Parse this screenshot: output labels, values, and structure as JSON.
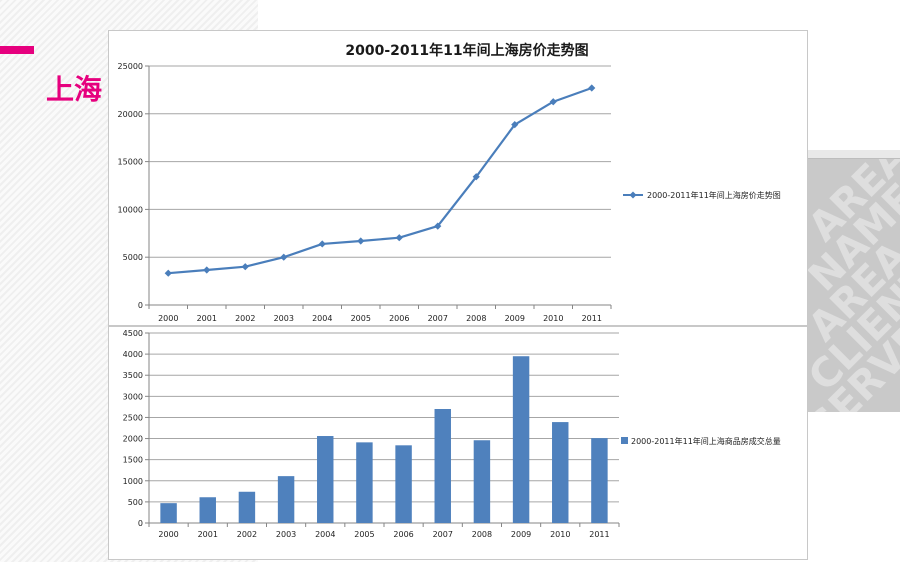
{
  "slide": {
    "title": "上海",
    "accent_color": "#e6007e"
  },
  "chart_data": [
    {
      "type": "line",
      "title": "2000-2011年11年间上海房价走势图",
      "categories": [
        "2000",
        "2001",
        "2002",
        "2003",
        "2004",
        "2005",
        "2006",
        "2007",
        "2008",
        "2009",
        "2010",
        "2011"
      ],
      "series": [
        {
          "name": "2000-2011年11年间上海房价走势图",
          "values": [
            3326,
            3658,
            4007,
            5000,
            6385,
            6698,
            7039,
            8253,
            13412,
            18866,
            21262,
            22700
          ],
          "color": "#4a7ebb",
          "marker": "diamond"
        }
      ],
      "ylim": [
        0,
        25000
      ],
      "yticks": [
        0,
        5000,
        10000,
        15000,
        20000,
        25000
      ],
      "grid": true,
      "legend": "right"
    },
    {
      "type": "bar",
      "title": "",
      "categories": [
        "2000",
        "2001",
        "2002",
        "2003",
        "2004",
        "2005",
        "2006",
        "2007",
        "2008",
        "2009",
        "2010",
        "2011"
      ],
      "series": [
        {
          "name": "2000-2011年11年间上海商品房成交总量",
          "values": [
            470,
            610,
            740,
            1110,
            2060,
            1910,
            1840,
            2700,
            1960,
            3950,
            2390,
            2010
          ],
          "color": "#4f81bd"
        }
      ],
      "ylim": [
        0,
        4500
      ],
      "yticks": [
        0,
        500,
        1000,
        1500,
        2000,
        2500,
        3000,
        3500,
        4000,
        4500
      ],
      "grid": true,
      "legend": "right"
    }
  ]
}
